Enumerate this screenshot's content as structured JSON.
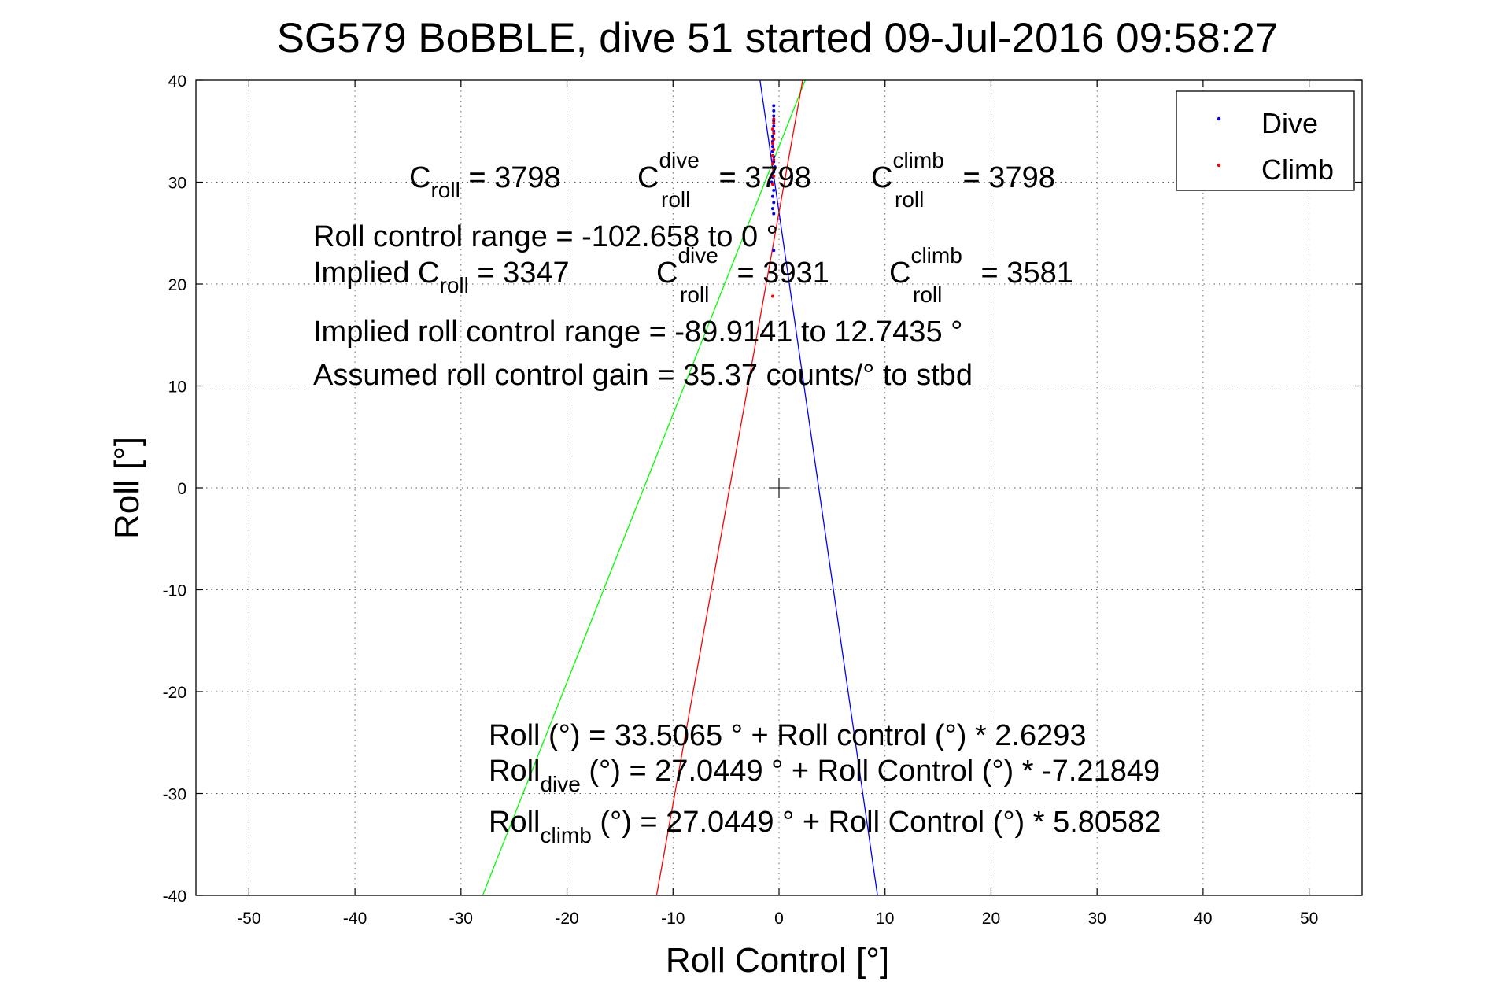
{
  "chart_data": {
    "type": "scatter",
    "title": "SG579 BoBBLE, dive 51 started 09-Jul-2016 09:58:27",
    "xlabel": "Roll Control [°]",
    "ylabel": "Roll [°]",
    "xlim": [
      -55,
      55
    ],
    "ylim": [
      -40,
      40
    ],
    "xticks": [
      -50,
      -40,
      -30,
      -20,
      -10,
      0,
      10,
      20,
      30,
      40,
      50
    ],
    "yticks": [
      40,
      30,
      20,
      10,
      0,
      -10,
      -20,
      -30,
      -40
    ],
    "xtick_labels": [
      "-50",
      "-40",
      "-30",
      "-20",
      "-10",
      "0",
      "10",
      "20",
      "30",
      "40",
      "50"
    ],
    "ytick_labels": [
      "40",
      "30",
      "20",
      "10",
      "0",
      "-10",
      "-20",
      "-30",
      "-40"
    ],
    "grid": true,
    "legend": {
      "placement": "top-right",
      "entries": [
        "Dive",
        "Climb"
      ]
    },
    "series": [
      {
        "name": "Dive",
        "color": "#0000ff",
        "points": [
          [
            -0.5,
            37.5
          ],
          [
            -0.5,
            37.0
          ],
          [
            -0.5,
            36.5
          ],
          [
            -0.5,
            36.0
          ],
          [
            -0.5,
            35.5
          ],
          [
            -0.5,
            35.0
          ],
          [
            -0.6,
            34.5
          ],
          [
            -0.6,
            34.0
          ],
          [
            -0.6,
            33.5
          ],
          [
            -0.6,
            33.0
          ],
          [
            -0.5,
            32.5
          ],
          [
            -0.5,
            32.0
          ],
          [
            -0.4,
            31.5
          ],
          [
            -0.5,
            31.0
          ],
          [
            -0.6,
            30.5
          ],
          [
            -0.7,
            30.0
          ],
          [
            -0.5,
            29.2
          ],
          [
            -0.6,
            28.6
          ],
          [
            -0.5,
            28.0
          ],
          [
            -0.6,
            27.4
          ],
          [
            -0.5,
            26.9
          ],
          [
            -0.5,
            23.3
          ]
        ]
      },
      {
        "name": "Climb",
        "color": "#ff0000",
        "points": [
          [
            -0.5,
            36.2
          ],
          [
            -0.5,
            35.8
          ],
          [
            -0.6,
            35.2
          ],
          [
            -0.5,
            34.8
          ],
          [
            -0.5,
            34.2
          ],
          [
            -0.6,
            33.8
          ],
          [
            -0.5,
            33.2
          ],
          [
            -0.6,
            32.6
          ],
          [
            -0.5,
            32.2
          ],
          [
            -0.6,
            31.8
          ],
          [
            -0.5,
            31.2
          ],
          [
            -0.5,
            30.6
          ],
          [
            -0.6,
            29.8
          ],
          [
            -0.6,
            18.8
          ]
        ]
      }
    ],
    "fit_lines": [
      {
        "id": "overall",
        "color": "#00ff00",
        "intercept": 33.5065,
        "slope": 2.6293
      },
      {
        "id": "dive",
        "color": "#0000ff",
        "intercept": 27.0449,
        "slope": -7.21849
      },
      {
        "id": "climb",
        "color": "#ff0000",
        "intercept": 27.0449,
        "slope": 5.80582
      }
    ],
    "annotations": {
      "c_roll": {
        "main": "C",
        "sub": "roll",
        "rest": " = 3798"
      },
      "c_roll_dive": {
        "main": "C",
        "sup": "dive",
        "sub": "roll",
        "rest": " = 3798"
      },
      "c_roll_climb": {
        "main": "C",
        "sup": "climb",
        "sub": "roll",
        "rest": " = 3798"
      },
      "roll_control_range": "Roll control range = -102.658 to 0 °",
      "implied_c_roll": {
        "main": "Implied C",
        "sub": "roll",
        "rest": " = 3347"
      },
      "implied_c_roll_dive": {
        "main": "C",
        "sup": "dive",
        "sub": "roll",
        "rest": " = 3931"
      },
      "implied_c_roll_climb": {
        "main": "C",
        "sup": "climb",
        "sub": "roll",
        "rest": " = 3581"
      },
      "implied_range": "Implied roll control range = -89.9141 to 12.7435 °",
      "gain": "Assumed roll control gain = 35.37 counts/° to stbd",
      "eq_overall": "Roll (°) = 33.5065 ° + Roll control (°) * 2.6293",
      "eq_dive": {
        "main": "Roll",
        "sub": "dive",
        "rest": " (°) = 27.0449 ° + Roll Control (°) * -7.21849"
      },
      "eq_climb": {
        "main": "Roll",
        "sub": "climb",
        "rest": " (°) = 27.0449 ° + Roll Control (°) * 5.80582"
      }
    }
  }
}
